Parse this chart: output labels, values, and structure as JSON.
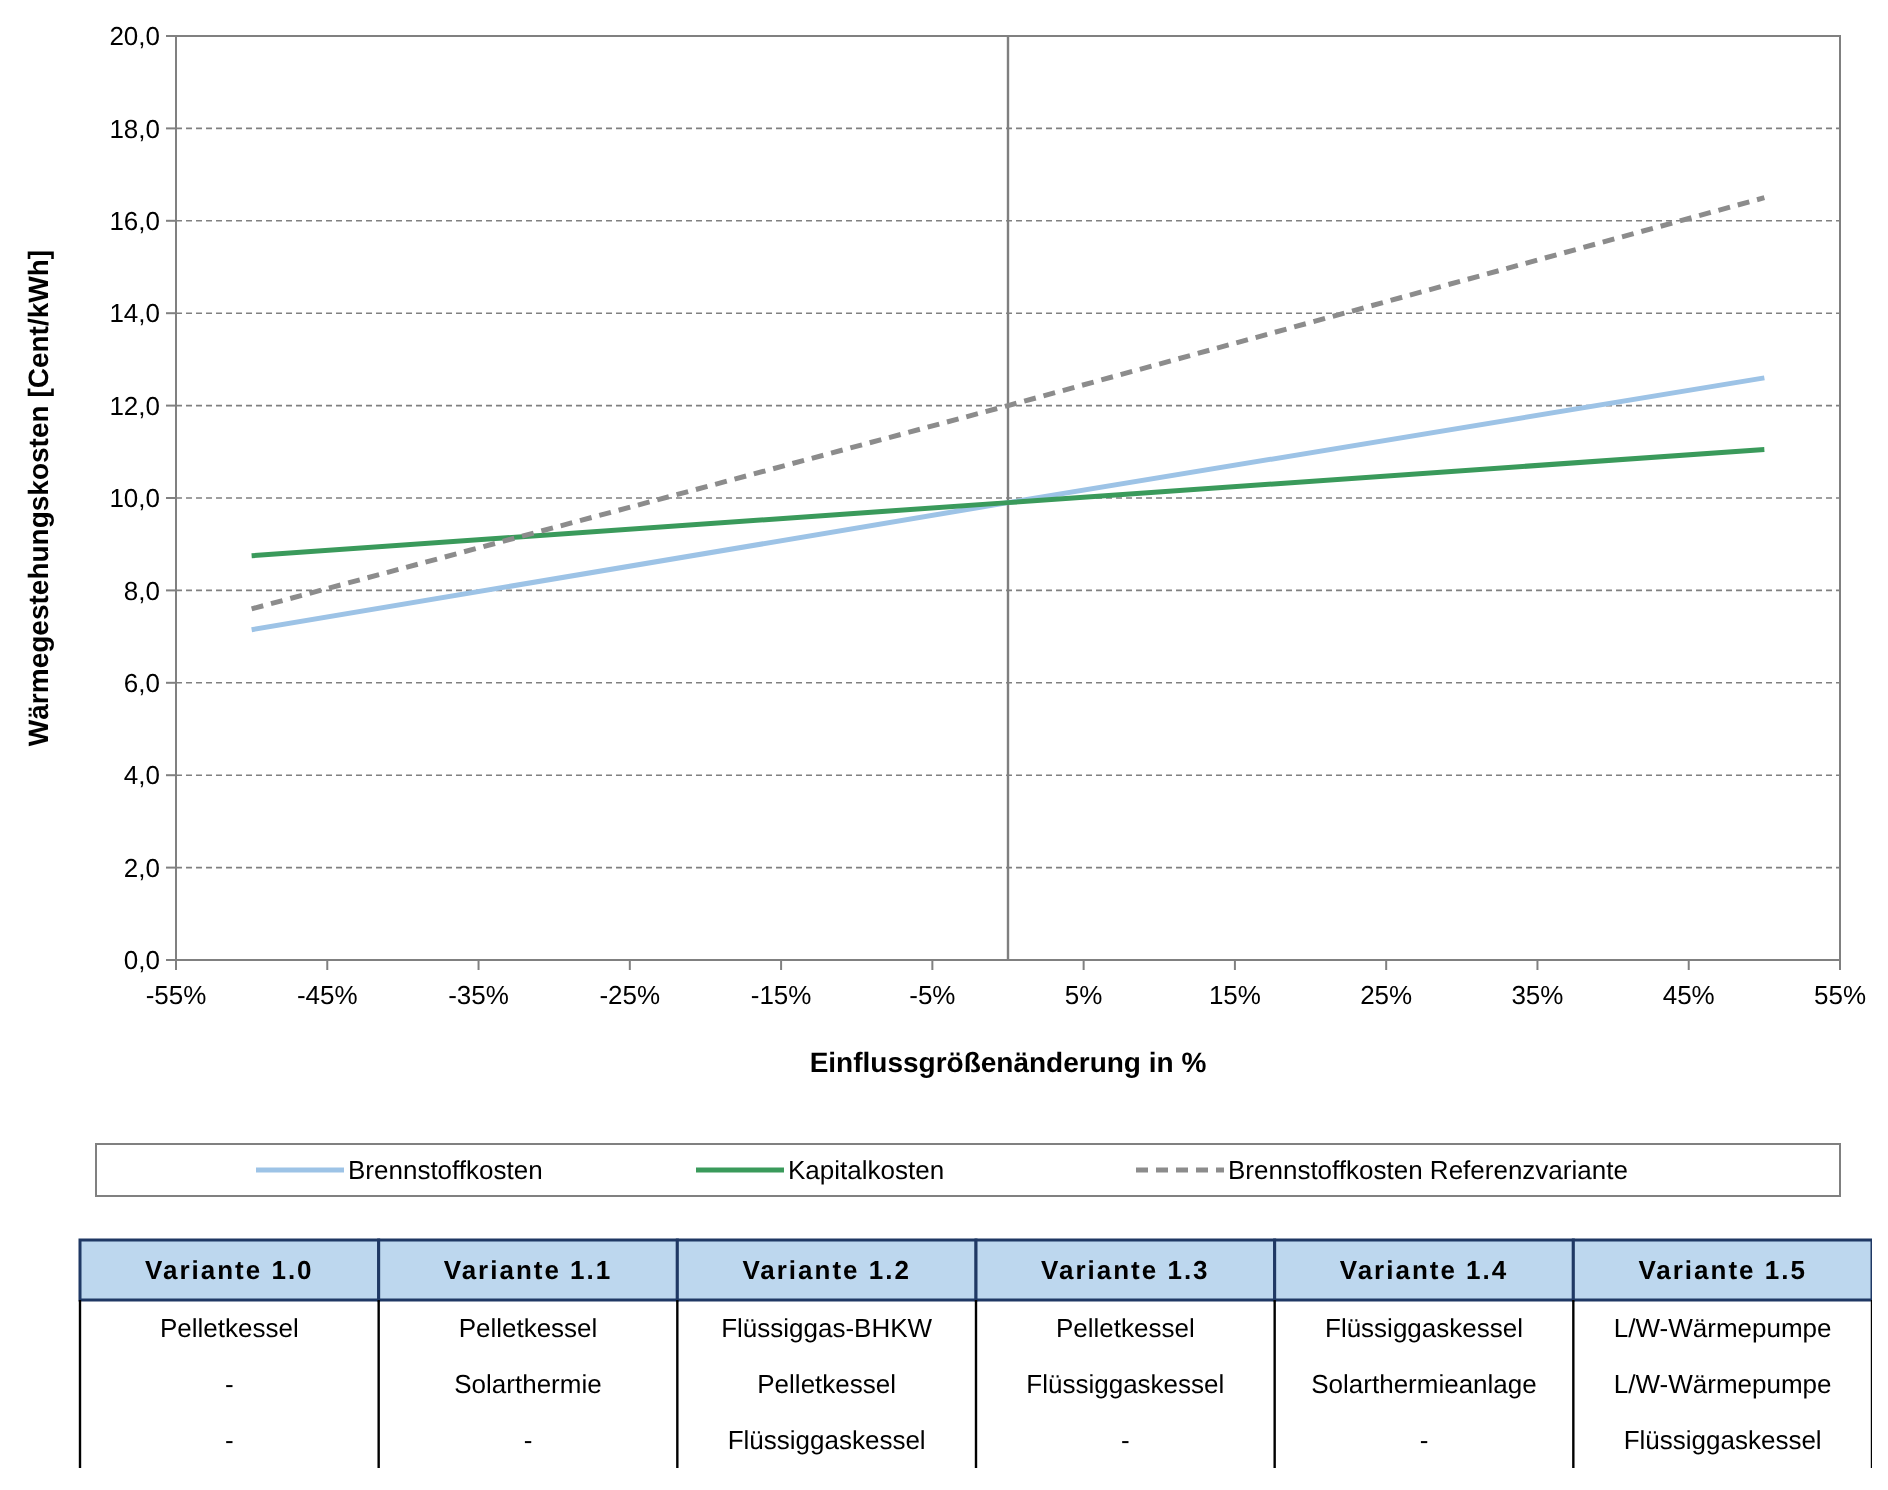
{
  "chart_data": [
    {
      "type": "line",
      "xlabel": "Einflussgrößenänderung in %",
      "ylabel": "Wärmegestehungskosten [Cent/kWh]",
      "x": [
        -50,
        0,
        50
      ],
      "series": [
        {
          "name": "Brennstoffkosten",
          "color": "#9dc3e6",
          "values": [
            7.15,
            9.9,
            12.6
          ],
          "line_style": "solid"
        },
        {
          "name": "Kapitalkosten",
          "color": "#3a9a5b",
          "values": [
            8.75,
            9.9,
            11.05
          ],
          "line_style": "solid"
        },
        {
          "name": "Brennstoffkosten Referenzvariante",
          "color": "#8c8c8c",
          "values": [
            7.6,
            12.0,
            16.5
          ],
          "line_style": "dashed"
        }
      ],
      "xlim": [
        -55,
        55
      ],
      "xticks": [
        {
          "value": -55,
          "label": "-55%"
        },
        {
          "value": -45,
          "label": "-45%"
        },
        {
          "value": -35,
          "label": "-35%"
        },
        {
          "value": -25,
          "label": "-25%"
        },
        {
          "value": -15,
          "label": "-15%"
        },
        {
          "value": -5,
          "label": "-5%"
        },
        {
          "value": 5,
          "label": "5%"
        },
        {
          "value": 15,
          "label": "15%"
        },
        {
          "value": 25,
          "label": "25%"
        },
        {
          "value": 35,
          "label": "35%"
        },
        {
          "value": 45,
          "label": "45%"
        },
        {
          "value": 55,
          "label": "55%"
        }
      ],
      "ylim": [
        0,
        20
      ],
      "yticks": [
        {
          "value": 0,
          "label": "0,0"
        },
        {
          "value": 2,
          "label": "2,0"
        },
        {
          "value": 4,
          "label": "4,0"
        },
        {
          "value": 6,
          "label": "6,0"
        },
        {
          "value": 8,
          "label": "8,0"
        },
        {
          "value": 10,
          "label": "10,0"
        },
        {
          "value": 12,
          "label": "12,0"
        },
        {
          "value": 14,
          "label": "14,0"
        },
        {
          "value": 16,
          "label": "16,0"
        },
        {
          "value": 18,
          "label": "18,0"
        },
        {
          "value": 20,
          "label": "20,0"
        }
      ],
      "grid": "y",
      "legend": "bottom",
      "ref_lines": [
        {
          "axis": "x",
          "value": 0,
          "color": "#7f7f7f"
        }
      ]
    },
    {
      "type": "other",
      "categories": [
        "Variante 1.0",
        "Variante 1.1",
        "Variante 1.2",
        "Variante 1.3",
        "Variante 1.4",
        "Variante 1.5"
      ],
      "annotations": [
        "Pelletkessel",
        "Pelletkessel",
        "Flüssiggas-BHKW",
        "Pelletkessel",
        "Flüssiggaskessel",
        "L/W-Wärmepumpe",
        "-",
        "Solarthermie",
        "Pelletkessel",
        "Flüssiggaskessel",
        "Solarthermieanlage",
        "L/W-Wärmepumpe",
        "-",
        "-",
        "Flüssiggaskessel",
        "-",
        "-",
        "Flüssiggaskessel"
      ]
    }
  ]
}
